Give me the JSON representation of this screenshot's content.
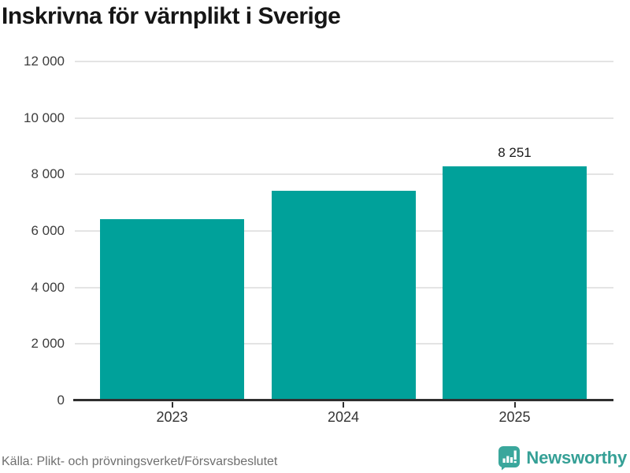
{
  "title": "Inskrivna för värnplikt i Sverige",
  "footer": {
    "source": "Källa: Plikt- och prövningsverket/Försvarsbeslutet",
    "brand": "Newsworthy"
  },
  "colors": {
    "bar": "#00a19a",
    "brand_teal": "#3aa79c",
    "gridline": "#e4e4e4",
    "axis": "#2f2f2f",
    "title_text": "#161616",
    "tick_text": "#3d3d3d",
    "source_text": "#6f6f6f"
  },
  "chart_data": {
    "type": "bar",
    "title": "Inskrivna för värnplikt i Sverige",
    "categories": [
      "2023",
      "2024",
      "2025"
    ],
    "values": [
      6400,
      7400,
      8251
    ],
    "value_labels": [
      "",
      "",
      "8 251"
    ],
    "xlabel": "",
    "ylabel": "",
    "ylim": [
      0,
      12000
    ],
    "ytick_step": 2000,
    "ytick_labels": [
      "0",
      "2 000",
      "4 000",
      "6 000",
      "8 000",
      "10 000",
      "12 000"
    ],
    "grid": true,
    "legend": "none",
    "source": "Källa: Plikt- och prövningsverket/Försvarsbeslutet"
  }
}
